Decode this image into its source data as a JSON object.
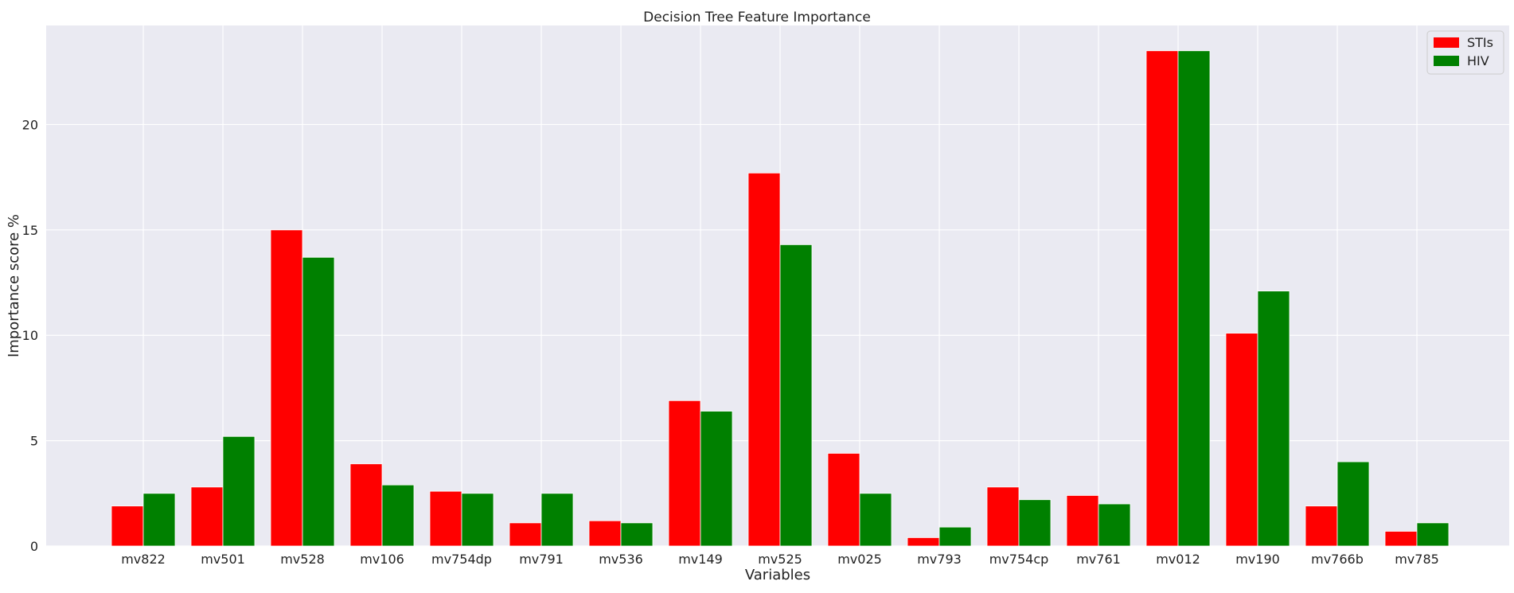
{
  "chart_data": {
    "type": "bar",
    "title": "Decision Tree Feature Importance",
    "xlabel": "Variables",
    "ylabel": "Importance score %",
    "categories": [
      "mv822",
      "mv501",
      "mv528",
      "mv106",
      "mv754dp",
      "mv791",
      "mv536",
      "mv149",
      "mv525",
      "mv025",
      "mv793",
      "mv754cp",
      "mv761",
      "mv012",
      "mv190",
      "mv766b",
      "mv785"
    ],
    "series": [
      {
        "name": "STIs",
        "color": "#ff0000",
        "values": [
          1.9,
          2.8,
          15.0,
          3.9,
          2.6,
          1.1,
          1.2,
          6.9,
          17.7,
          4.4,
          0.4,
          2.8,
          2.4,
          23.5,
          10.1,
          1.9,
          0.7
        ]
      },
      {
        "name": "HIV",
        "color": "#008000",
        "values": [
          2.5,
          5.2,
          13.7,
          2.9,
          2.5,
          2.5,
          1.1,
          6.4,
          14.3,
          2.5,
          0.9,
          2.2,
          2.0,
          23.5,
          12.1,
          4.0,
          1.1
        ]
      }
    ],
    "yticks": [
      0,
      5,
      10,
      15,
      20
    ],
    "ylim": [
      0,
      24.7
    ],
    "grid": true,
    "legend_position": "top-right",
    "background_color": "#eaeaf2",
    "grid_color": "#ffffff"
  }
}
